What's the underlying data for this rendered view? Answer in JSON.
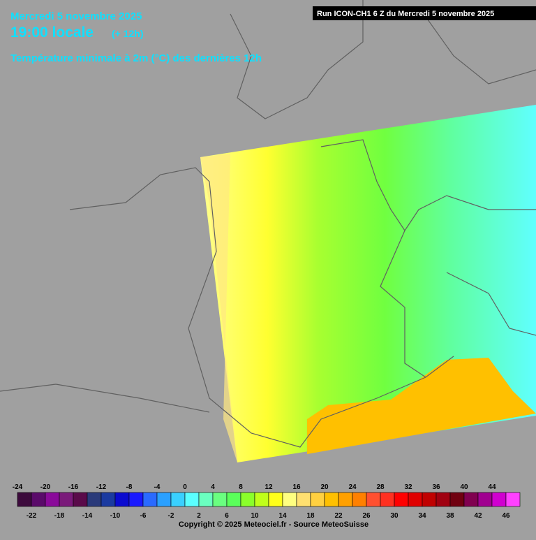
{
  "header": {
    "date": "Mercredi 5 novembre 2025",
    "time": "19:00 locale",
    "offset": "(+ 12h)",
    "subtitle": "Température minimale à 2m (°C) des dernières 12h"
  },
  "run_label": "Run ICON-CH1 6 Z du Mercredi 5 novembre 2025",
  "legend": {
    "values": [
      -24,
      -22,
      -20,
      -18,
      -16,
      -14,
      -12,
      -10,
      -8,
      -6,
      -4,
      -2,
      0,
      2,
      4,
      6,
      8,
      10,
      12,
      14,
      16,
      18,
      20,
      22,
      24,
      26,
      28,
      30,
      32,
      34,
      36,
      38,
      40,
      42,
      44,
      46
    ],
    "colors": [
      "#3c0a3c",
      "#5a0a6a",
      "#8a0a9a",
      "#7a1a7a",
      "#5a0a4a",
      "#2a3a7a",
      "#1a3aa0",
      "#0a0ad0",
      "#1a1aff",
      "#2a6aff",
      "#2aa0ff",
      "#3ad0ff",
      "#5affff",
      "#6affc0",
      "#6aff80",
      "#5aff5a",
      "#8aff2a",
      "#c0ff1a",
      "#ffff1a",
      "#ffff80",
      "#ffe070",
      "#ffd040",
      "#ffc000",
      "#ffa000",
      "#ff8000",
      "#ff5030",
      "#ff3020",
      "#ff0000",
      "#e00000",
      "#c00000",
      "#a00010",
      "#700010",
      "#800050",
      "#a00090",
      "#d000d0",
      "#ff40ff"
    ]
  },
  "copyright": "Copyright © 2025 Meteociel.fr - Source MeteoSuisse"
}
